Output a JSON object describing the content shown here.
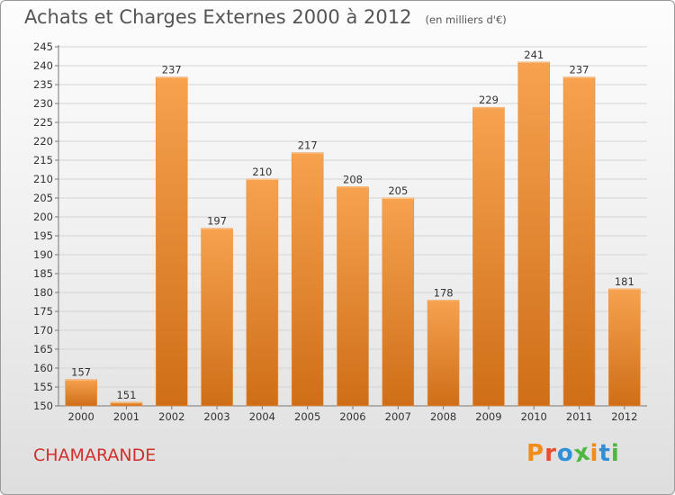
{
  "header": {
    "title": "Achats et Charges Externes 2000 à 2012",
    "subtitle": "(en milliers d'€)"
  },
  "footer": {
    "commune": "CHAMARANDE",
    "logo": "Proxiti"
  },
  "colors": {
    "bar_light": "#f6a24f",
    "bar_dark": "#cf6e17",
    "commune_text": "#d0312d",
    "logo_letters": [
      "#f08c1a",
      "#e94d2c",
      "#2f90d8",
      "#4db83f",
      "#f08c1a",
      "#2f90d8",
      "#4db83f"
    ]
  },
  "chart_data": {
    "type": "bar",
    "categories": [
      "2000",
      "2001",
      "2002",
      "2003",
      "2004",
      "2005",
      "2006",
      "2007",
      "2008",
      "2009",
      "2010",
      "2011",
      "2012"
    ],
    "values": [
      157,
      151,
      237,
      197,
      210,
      217,
      208,
      205,
      178,
      229,
      241,
      237,
      181
    ],
    "ylim": [
      150,
      245
    ],
    "yticks": [
      150,
      155,
      160,
      165,
      170,
      175,
      180,
      185,
      190,
      195,
      200,
      205,
      210,
      215,
      220,
      225,
      230,
      235,
      240,
      245
    ],
    "grid": true,
    "data_labels": true,
    "xlabel": "",
    "ylabel": ""
  }
}
